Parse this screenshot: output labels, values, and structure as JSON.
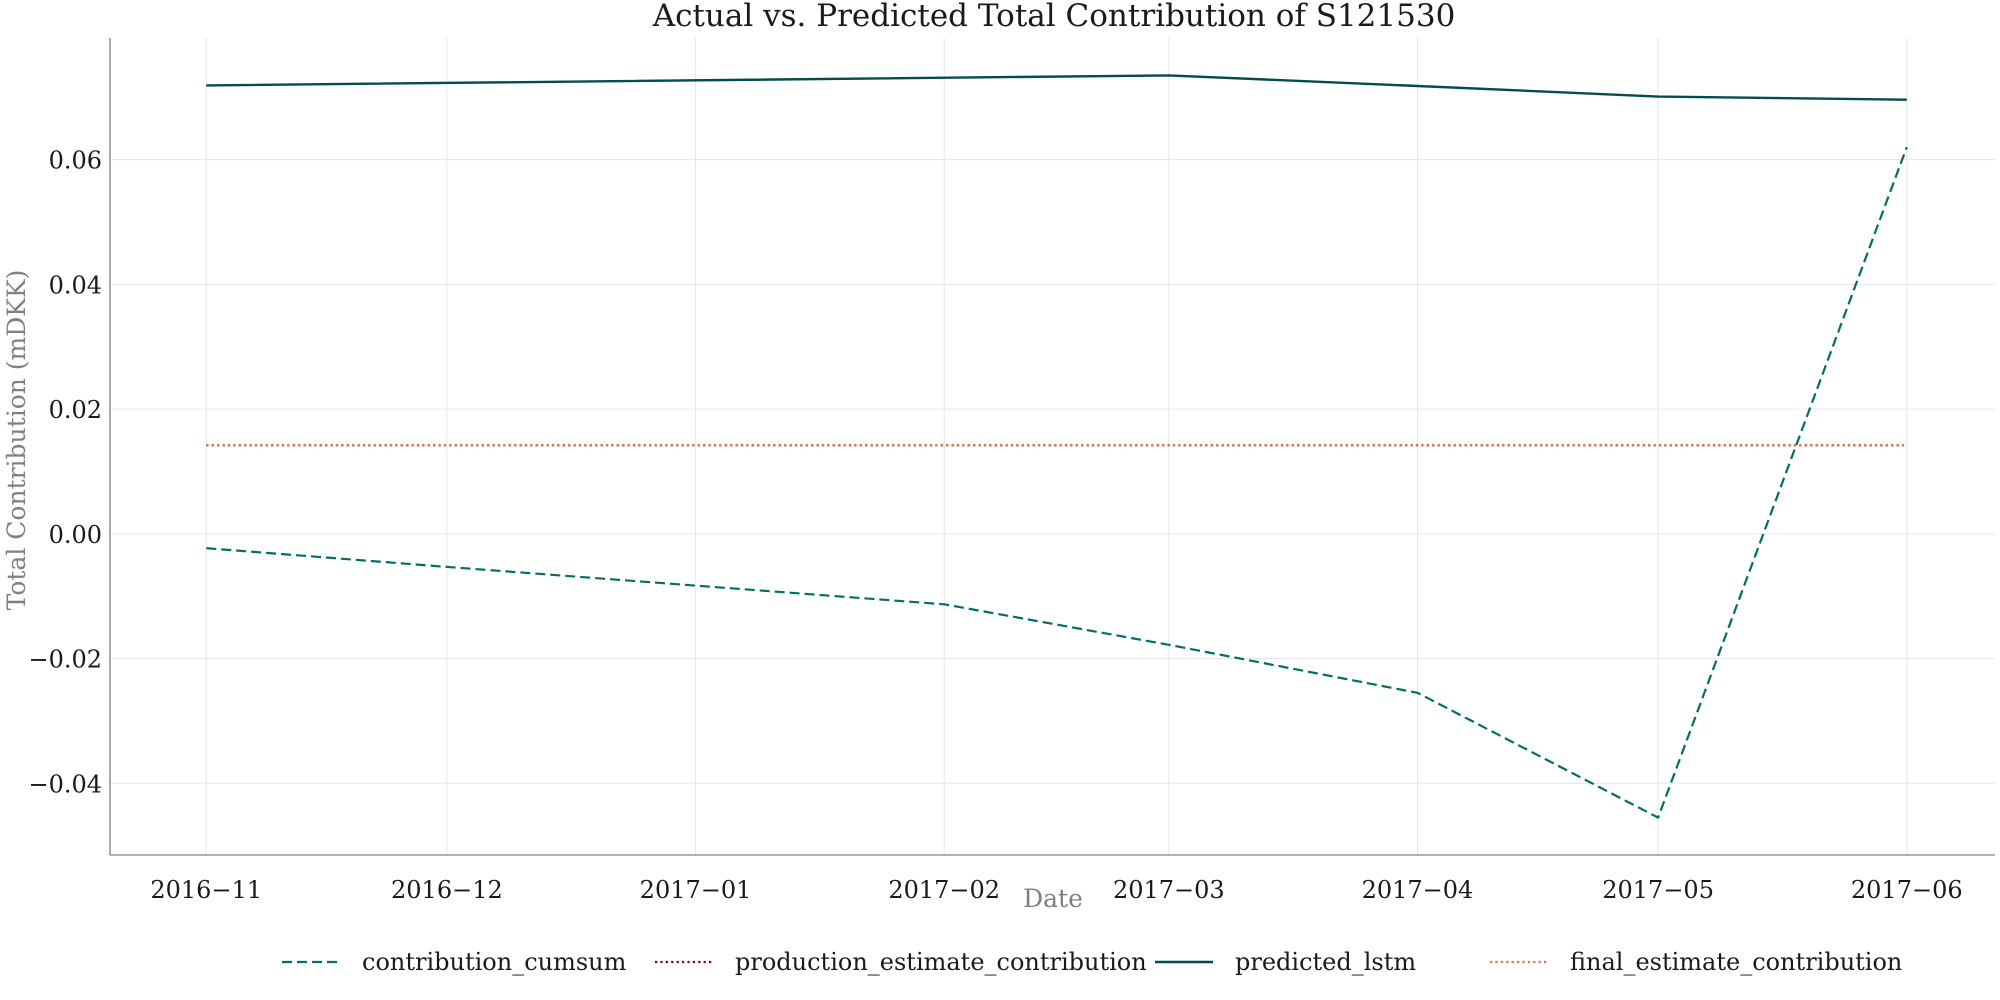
{
  "chart_data": {
    "type": "line",
    "title": "Actual vs. Predicted Total Contribution of S121530",
    "xlabel": "Date",
    "ylabel": "Total Contribution (mDKK)",
    "x": [
      "2016-11-01",
      "2016-12-01",
      "2017-01-01",
      "2017-02-01",
      "2017-03-01",
      "2017-04-01",
      "2017-05-01",
      "2017-06-01"
    ],
    "x_tick_labels": [
      "2016−11",
      "2016−12",
      "2017−01",
      "2017−02",
      "2017−03",
      "2017−04",
      "2017−05",
      "2017−06"
    ],
    "y_ticks": [
      -0.04,
      -0.02,
      0.0,
      0.02,
      0.04,
      0.06
    ],
    "y_tick_labels": [
      "−0.04",
      "−0.02",
      "0.00",
      "0.02",
      "0.04",
      "0.06"
    ],
    "xlim": [
      "2016-10-20",
      "2017-06-12"
    ],
    "ylim": [
      -0.0515,
      0.0795
    ],
    "grid": true,
    "legend_position": "bottom-center",
    "series": [
      {
        "name": "contribution_cumsum",
        "style": "dashed",
        "color": "#006e62",
        "x": [
          "2016-11-01",
          "2016-12-01",
          "2017-01-01",
          "2017-02-01",
          "2017-03-01",
          "2017-04-01",
          "2017-05-01",
          "2017-06-01"
        ],
        "values": [
          -0.0023,
          -0.0053,
          -0.0083,
          -0.0113,
          -0.0178,
          -0.0255,
          -0.0455,
          0.062
        ]
      },
      {
        "name": "production_estimate_contribution",
        "style": "dotted",
        "color": "#8b0000",
        "x": [
          "2016-11-01",
          "2017-06-01"
        ],
        "values": [
          0.0142,
          0.0142
        ]
      },
      {
        "name": "predicted_lstm",
        "style": "solid",
        "color": "#004d4d",
        "x": [
          "2016-11-01",
          "2017-03-01",
          "2017-04-01",
          "2017-05-01",
          "2017-06-01"
        ],
        "values": [
          0.0719,
          0.0735,
          0.0718,
          0.0701,
          0.0696
        ]
      },
      {
        "name": "final_estimate_contribution",
        "style": "dotted",
        "color": "#e07050",
        "x": [
          "2016-11-01",
          "2017-06-01"
        ],
        "values": [
          0.0142,
          0.0142
        ]
      }
    ]
  }
}
